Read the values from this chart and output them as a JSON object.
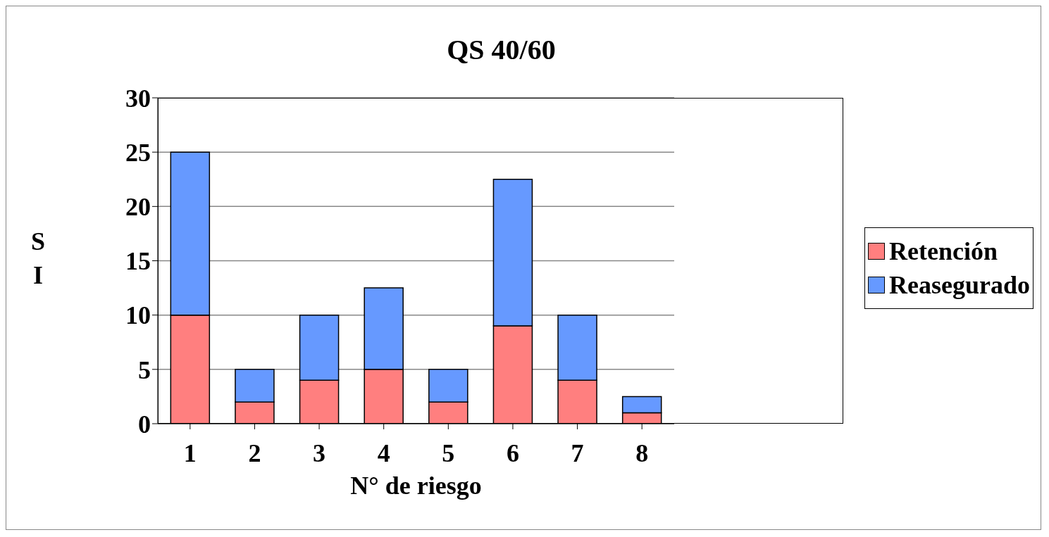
{
  "chart_data": {
    "type": "bar",
    "title": "QS 40/60",
    "xlabel": "N° de riesgo",
    "ylabel": "SI",
    "categories": [
      "1",
      "2",
      "3",
      "4",
      "5",
      "6",
      "7",
      "8"
    ],
    "series": [
      {
        "name": "Retención",
        "color": "#ff7f7f",
        "values": [
          10,
          2,
          4,
          5,
          2,
          9,
          4,
          1
        ]
      },
      {
        "name": "Reasegurado",
        "color": "#6699ff",
        "values": [
          15,
          3,
          6,
          7.5,
          3,
          13.5,
          6,
          1.5
        ]
      }
    ],
    "stacked": true,
    "ylim": [
      0,
      30
    ],
    "yticks": [
      0,
      5,
      10,
      15,
      20,
      25,
      30
    ],
    "grid": "y",
    "legend": "right"
  }
}
